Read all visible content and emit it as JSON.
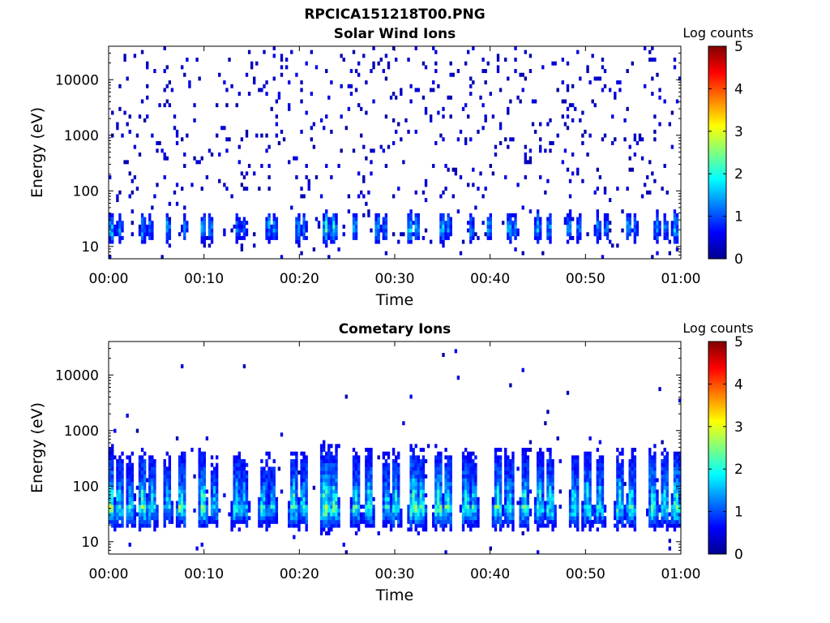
{
  "figure": {
    "title": "RPCICA151218T00.PNG"
  },
  "chart_data": [
    {
      "type": "heatmap",
      "title": "Solar Wind Ions",
      "xlabel": "Time",
      "ylabel": "Energy (eV)",
      "x_ticks": [
        "00:00",
        "00:10",
        "00:20",
        "00:30",
        "00:40",
        "00:50",
        "01:00"
      ],
      "xlim_minutes": [
        0,
        60
      ],
      "y_scale": "log",
      "y_ticks": [
        10,
        100,
        1000,
        10000
      ],
      "y_tick_labels": [
        "10",
        "100",
        "1000",
        "10000"
      ],
      "ylim": [
        6,
        40000
      ],
      "colorbar": {
        "label": "Log counts",
        "range": [
          0,
          5
        ],
        "ticks": [
          "0",
          "1",
          "2",
          "3",
          "4",
          "5"
        ],
        "colormap": "jet"
      },
      "pulse_minutes": [
        0.3,
        1.2,
        3.6,
        4.3,
        6.2,
        8.0,
        9.9,
        10.7,
        13.5,
        14.2,
        16.8,
        17.4,
        19.9,
        20.5,
        22.8,
        23.6,
        25.8,
        28.2,
        29.0,
        31.6,
        32.3,
        35.0,
        35.6,
        38.0,
        39.9,
        42.0,
        42.6,
        45.0,
        46.2,
        48.3,
        49.3,
        51.3,
        52.2,
        54.5,
        55.2,
        57.5,
        58.4,
        59.4
      ],
      "pulse_peak_log_counts": [
        1.8,
        1.4,
        1.6,
        1.3,
        1.5,
        1.3,
        1.6,
        1.4,
        1.3,
        1.2,
        1.5,
        1.4,
        1.6,
        1.3,
        2.2,
        2.0,
        1.5,
        1.6,
        1.4,
        1.9,
        1.6,
        1.8,
        1.5,
        1.4,
        1.5,
        1.6,
        1.4,
        1.7,
        1.5,
        1.5,
        1.3,
        1.5,
        1.4,
        1.5,
        1.3,
        1.5,
        1.4,
        1.8
      ],
      "background_max_log_counts": 0.4
    },
    {
      "type": "heatmap",
      "title": "Cometary Ions",
      "xlabel": "Time",
      "ylabel": "Energy (eV)",
      "x_ticks": [
        "00:00",
        "00:10",
        "00:20",
        "00:30",
        "00:40",
        "00:50",
        "01:00"
      ],
      "xlim_minutes": [
        0,
        60
      ],
      "y_scale": "log",
      "y_ticks": [
        10,
        100,
        1000,
        10000
      ],
      "y_tick_labels": [
        "10",
        "100",
        "1000",
        "10000"
      ],
      "ylim": [
        6,
        40000
      ],
      "colorbar": {
        "label": "Log counts",
        "range": [
          0,
          5
        ],
        "ticks": [
          "0",
          "1",
          "2",
          "3",
          "4",
          "5"
        ],
        "colormap": "jet"
      },
      "pulse_minutes": [
        0.2,
        1.1,
        2.3,
        3.6,
        4.6,
        6.2,
        7.6,
        9.9,
        11.1,
        13.4,
        14.2,
        16.2,
        17.2,
        19.4,
        20.4,
        22.7,
        23.7,
        25.9,
        27.3,
        29.2,
        30.1,
        32.0,
        32.8,
        34.6,
        35.5,
        37.5,
        38.3,
        40.8,
        42.0,
        43.6,
        45.2,
        46.3,
        48.8,
        50.2,
        51.5,
        53.6,
        54.8,
        57.1,
        58.3,
        59.5
      ],
      "pulse_peak_log_counts": [
        3.1,
        2.6,
        2.4,
        3.0,
        2.6,
        2.3,
        2.9,
        3.0,
        2.2,
        2.7,
        2.4,
        2.5,
        2.3,
        2.9,
        2.6,
        3.6,
        3.3,
        2.7,
        2.9,
        2.5,
        2.7,
        3.4,
        3.0,
        3.1,
        2.8,
        2.9,
        2.5,
        3.0,
        2.7,
        2.9,
        2.8,
        3.0,
        2.8,
        2.9,
        2.6,
        2.9,
        2.7,
        3.0,
        2.8,
        3.2
      ],
      "background_max_log_counts": 0.5
    }
  ]
}
